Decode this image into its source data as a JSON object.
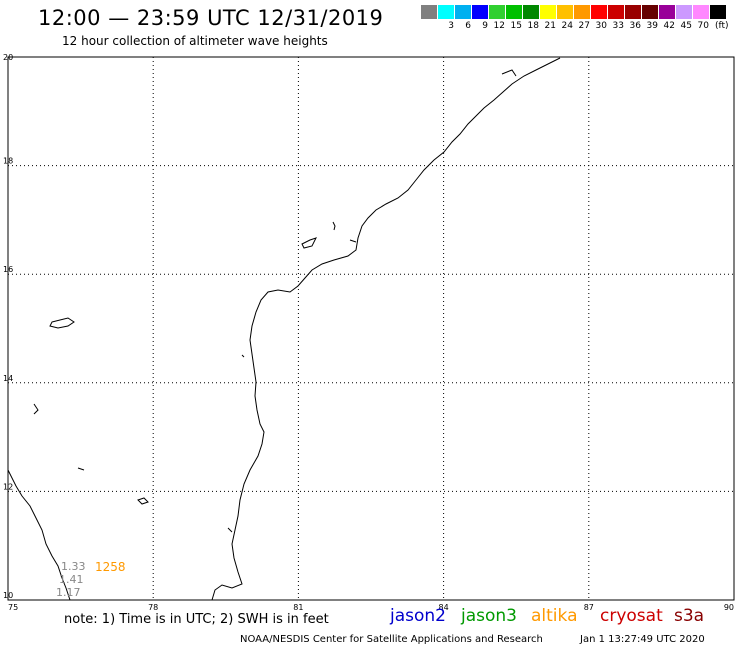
{
  "header": {
    "title": "12:00 — 23:59 UTC 12/31/2019",
    "subtitle": "12 hour collection of altimeter wave heights"
  },
  "colorbar": {
    "unit": "(ft)",
    "bins": [
      {
        "label": "",
        "color": "#808080"
      },
      {
        "label": "3",
        "color": "#00ffff"
      },
      {
        "label": "6",
        "color": "#00b0f0"
      },
      {
        "label": "9",
        "color": "#0000ff"
      },
      {
        "label": "12",
        "color": "#30d030"
      },
      {
        "label": "15",
        "color": "#00c000"
      },
      {
        "label": "18",
        "color": "#008800"
      },
      {
        "label": "21",
        "color": "#ffff00"
      },
      {
        "label": "24",
        "color": "#ffc000"
      },
      {
        "label": "27",
        "color": "#ff9900"
      },
      {
        "label": "30",
        "color": "#ff0000"
      },
      {
        "label": "33",
        "color": "#cc0000"
      },
      {
        "label": "36",
        "color": "#990000"
      },
      {
        "label": "39",
        "color": "#660000"
      },
      {
        "label": "42",
        "color": "#990099"
      },
      {
        "label": "45",
        "color": "#cc99ff"
      },
      {
        "label": "70",
        "color": "#ff88ff"
      },
      {
        "label": "",
        "color": "#000000"
      }
    ]
  },
  "map": {
    "lon_range": [
      75,
      90
    ],
    "lat_range": [
      10,
      20
    ],
    "lon_ticks": [
      "75",
      "78",
      "81",
      "84",
      "87",
      "90"
    ],
    "lat_ticks": [
      "10",
      "12",
      "14",
      "16",
      "18",
      "20"
    ],
    "grid": "dotted"
  },
  "observations": [
    {
      "value": "1.33",
      "color": "#888888"
    },
    {
      "value": "1.41",
      "color": "#888888"
    },
    {
      "value": "1.17",
      "color": "#888888"
    }
  ],
  "pass_time": {
    "value": "1258",
    "color": "#ff9900"
  },
  "footer": {
    "note": "note:  1) Time is in UTC; 2) SWH is in feet",
    "satellites": [
      {
        "name": "jason2",
        "color": "#0000cc"
      },
      {
        "name": "jason3",
        "color": "#009900"
      },
      {
        "name": "altika",
        "color": "#ff9900"
      },
      {
        "name": "cryosat",
        "color": "#cc0000"
      },
      {
        "name": "s3a",
        "color": "#880000"
      }
    ],
    "credit": "NOAA/NESDIS Center for Satellite Applications and Research",
    "generated": "Jan  1 13:27:49 UTC 2020"
  }
}
